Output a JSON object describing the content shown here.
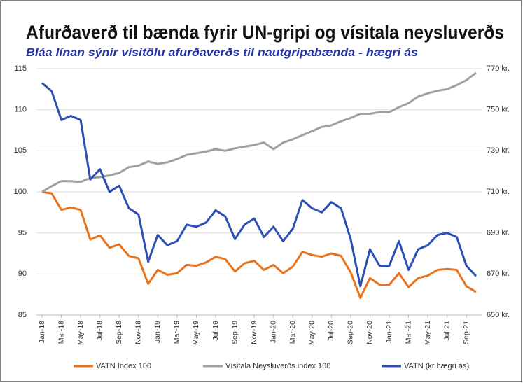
{
  "chart_data": {
    "type": "line",
    "title": "Afurðaverð til bænda fyrir UN-gripi og vísitala neysluverðs",
    "subtitle": "Bláa línan sýnir vísitölu afurðaverðs til nautgripabænda - hægri ás",
    "categories": [
      "Jan-18",
      null,
      "Mar-18",
      null,
      "May-18",
      null,
      "Jul-18",
      null,
      "Sep-18",
      null,
      "Nov-18",
      null,
      "Jan-19",
      null,
      "Mar-19",
      null,
      "May-19",
      null,
      "Jul-19",
      null,
      "Sep-19",
      null,
      "Nov-19",
      null,
      "Jan-20",
      null,
      "Mar-20",
      null,
      "May-20",
      null,
      "Jul-20",
      null,
      "Sep-20",
      null,
      "Nov-20",
      null,
      "Jan-21",
      null,
      "Mar-21",
      null,
      "May-21",
      null,
      "Jul-21",
      null,
      "Sep-21",
      null
    ],
    "series": [
      {
        "name": "VATN Index 100",
        "color": "#e8731c",
        "values": [
          100,
          99.8,
          97.8,
          98.1,
          97.8,
          94.2,
          94.7,
          93.2,
          93.6,
          92.2,
          91.9,
          88.8,
          90.5,
          89.9,
          90.1,
          91.1,
          91.0,
          91.4,
          92.1,
          91.8,
          90.3,
          91.3,
          91.6,
          90.5,
          91.1,
          90.1,
          90.9,
          92.7,
          92.3,
          92.1,
          92.5,
          92.2,
          90.2,
          87.1,
          89.5,
          88.7,
          88.7,
          90.1,
          88.4,
          89.5,
          89.8,
          90.5,
          90.6,
          90.5,
          88.5,
          87.8
        ]
      },
      {
        "name": "Vísitala Neysluverðs index 100",
        "color": "#a0a0a0",
        "values": [
          100,
          100.7,
          101.3,
          101.3,
          101.2,
          101.7,
          101.8,
          102.0,
          102.3,
          103.0,
          103.2,
          103.7,
          103.4,
          103.6,
          104.0,
          104.5,
          104.7,
          104.9,
          105.2,
          105.0,
          105.3,
          105.5,
          105.7,
          106.0,
          105.2,
          106.0,
          106.4,
          106.9,
          107.4,
          107.9,
          108.1,
          108.6,
          109.0,
          109.5,
          109.5,
          109.7,
          109.7,
          110.3,
          110.8,
          111.6,
          112.0,
          112.3,
          112.5,
          113.0,
          113.6,
          114.5
        ]
      },
      {
        "name": "VATN (kr hægri ás)",
        "color": "#2b4fb3",
        "axis": "y2",
        "values": [
          763,
          759,
          745,
          747,
          745,
          716,
          721,
          710,
          713,
          702,
          699,
          676,
          689,
          684,
          686,
          694,
          693,
          695,
          701,
          698,
          687,
          694,
          697,
          688,
          693,
          686,
          692,
          706,
          702,
          700,
          705,
          702,
          687,
          664,
          682,
          674,
          674,
          686,
          672,
          682,
          684,
          689,
          690,
          688,
          674,
          669
        ]
      }
    ],
    "ylim": [
      85,
      115
    ],
    "yticks": [
      85,
      90,
      95,
      100,
      105,
      110,
      115
    ],
    "y2lim": [
      650,
      770
    ],
    "y2ticks": [
      {
        "value": 650,
        "label": "650 kr."
      },
      {
        "value": 670,
        "label": "670 kr."
      },
      {
        "value": 690,
        "label": "690 kr."
      },
      {
        "value": 710,
        "label": "710 kr."
      },
      {
        "value": 730,
        "label": "730 kr."
      },
      {
        "value": 750,
        "label": "750 kr."
      },
      {
        "value": 770,
        "label": "770 kr."
      }
    ],
    "grid": true,
    "legend": "bottom"
  }
}
